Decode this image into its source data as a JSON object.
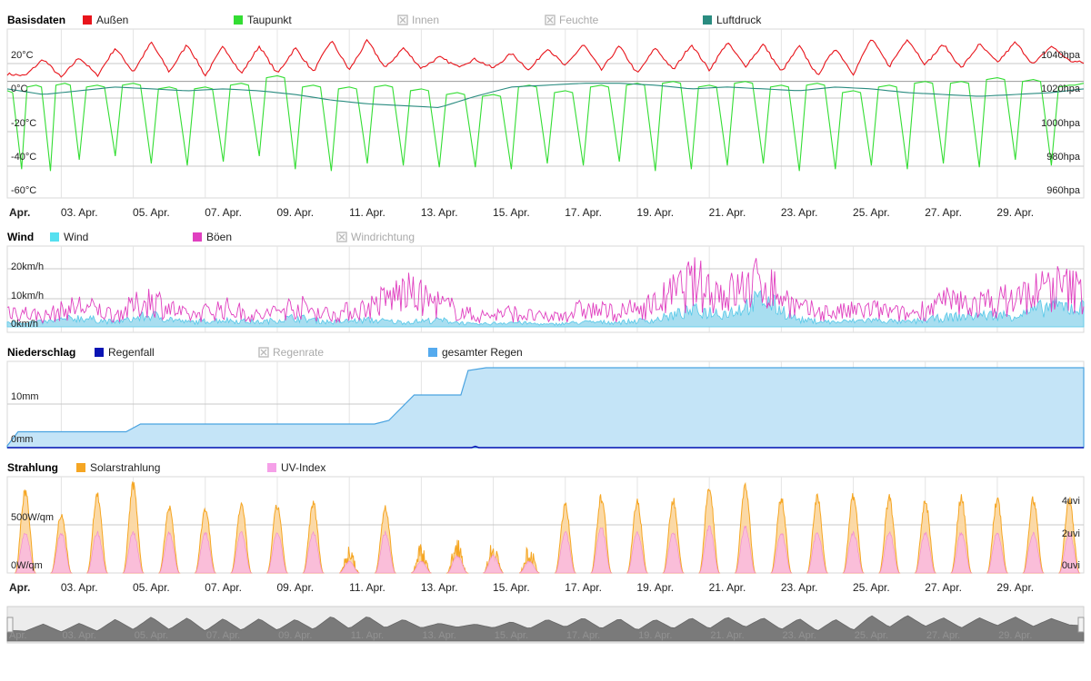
{
  "panels": [
    {
      "title": "Basisdaten",
      "legend": [
        {
          "label": "Außen",
          "color": "#e8141b",
          "enabled": true
        },
        {
          "label": "Taupunkt",
          "color": "#33dd33",
          "enabled": true
        },
        {
          "label": "Innen",
          "color": "#bbbbbb",
          "enabled": false
        },
        {
          "label": "Feuchte",
          "color": "#bbbbbb",
          "enabled": false
        },
        {
          "label": "Luftdruck",
          "color": "#2a8c80",
          "enabled": true
        }
      ],
      "left_axis": {
        "ticks": [
          "20°C",
          "0°C",
          "-20°C",
          "-40°C",
          "-60°C"
        ]
      },
      "right_axis": {
        "ticks": [
          "1040hpa",
          "1020hpa",
          "1000hpa",
          "980hpa",
          "960hpa"
        ]
      }
    },
    {
      "title": "Wind",
      "legend": [
        {
          "label": "Wind",
          "color": "#55e0f0",
          "enabled": true
        },
        {
          "label": "Böen",
          "color": "#e040c0",
          "enabled": true
        },
        {
          "label": "Windrichtung",
          "color": "#bbbbbb",
          "enabled": false
        }
      ],
      "left_axis": {
        "ticks": [
          "20km/h",
          "10km/h",
          "0km/h"
        ]
      }
    },
    {
      "title": "Niederschlag",
      "legend": [
        {
          "label": "Regenfall",
          "color": "#0a14b4",
          "enabled": true
        },
        {
          "label": "Regenrate",
          "color": "#bbbbbb",
          "enabled": false
        },
        {
          "label": "gesamter Regen",
          "color": "#55aaee",
          "enabled": true
        }
      ],
      "left_axis": {
        "ticks": [
          "10mm",
          "0mm"
        ]
      }
    },
    {
      "title": "Strahlung",
      "legend": [
        {
          "label": "Solarstrahlung",
          "color": "#f5a623",
          "enabled": true
        },
        {
          "label": "UV-Index",
          "color": "#f5a0e8",
          "enabled": true
        }
      ],
      "left_axis": {
        "ticks": [
          "500W/qm",
          "0W/qm"
        ]
      },
      "right_axis": {
        "ticks": [
          "4uvi",
          "2uvi",
          "0uvi"
        ]
      }
    }
  ],
  "x_axis_labels": [
    "Apr.",
    "03. Apr.",
    "05. Apr.",
    "07. Apr.",
    "09. Apr.",
    "11. Apr.",
    "13. Apr.",
    "15. Apr.",
    "17. Apr.",
    "19. Apr.",
    "21. Apr.",
    "23. Apr.",
    "25. Apr.",
    "27. Apr.",
    "29. Apr."
  ],
  "chart_data": [
    {
      "type": "line",
      "title": "Basisdaten",
      "x_unit": "day of April",
      "xlim": [
        1,
        30.9
      ],
      "ylim_left": [
        -60,
        30
      ],
      "ylim_right": [
        960,
        1050
      ],
      "grid": true,
      "legend_position": "top",
      "series": [
        {
          "name": "Außen",
          "axis": "left",
          "unit": "°C",
          "color": "#e8141b",
          "x": [
            1.0,
            1.5,
            2.0,
            2.5,
            3.0,
            3.5,
            4.0,
            4.5,
            5.0,
            5.5,
            6.0,
            6.5,
            7.0,
            7.5,
            8.0,
            8.5,
            9.0,
            9.5,
            10.0,
            10.5,
            11.0,
            11.5,
            12.0,
            12.5,
            13.0,
            13.5,
            14.0,
            14.5,
            15.0,
            15.5,
            16.0,
            16.5,
            17.0,
            17.5,
            18.0,
            18.5,
            19.0,
            19.5,
            20.0,
            20.5,
            21.0,
            21.5,
            22.0,
            22.5,
            23.0,
            23.5,
            24.0,
            24.5,
            25.0,
            25.5,
            26.0,
            26.5,
            27.0,
            27.5,
            28.0,
            28.5,
            29.0,
            29.5,
            30.0,
            30.5,
            30.9
          ],
          "values": [
            4,
            3,
            12,
            2,
            13,
            3,
            18,
            5,
            21,
            5,
            20,
            3,
            19,
            4,
            19,
            4,
            18,
            5,
            22,
            6,
            22,
            7,
            18,
            7,
            13,
            8,
            12,
            7,
            15,
            6,
            18,
            8,
            20,
            6,
            19,
            4,
            18,
            6,
            20,
            6,
            21,
            8,
            20,
            5,
            19,
            3,
            18,
            4,
            23,
            8,
            23,
            9,
            20,
            7,
            20,
            10,
            21,
            9,
            19,
            11,
            10
          ]
        },
        {
          "name": "Taupunkt",
          "axis": "left",
          "unit": "°C",
          "color": "#33dd33",
          "x": [
            1.0,
            1.4,
            1.8,
            2.2,
            2.6,
            3.0,
            3.5,
            4.0,
            4.5,
            5.0,
            5.5,
            6.0,
            6.5,
            7.0,
            7.5,
            8.0,
            8.5,
            9.0,
            9.5,
            10.0,
            10.5,
            11.0,
            11.5,
            12.0,
            12.5,
            13.0,
            13.5,
            14.0,
            14.5,
            15.0,
            15.5,
            16.0,
            16.5,
            17.0,
            17.5,
            18.0,
            18.5,
            19.0,
            19.5,
            20.0,
            20.5,
            21.0,
            21.5,
            22.0,
            22.5,
            23.0,
            23.5,
            24.0,
            24.5,
            25.0,
            25.5,
            26.0,
            26.5,
            27.0,
            27.5,
            28.0,
            28.5,
            29.0,
            29.5,
            30.0,
            30.5,
            30.9
          ],
          "values": [
            -5,
            -47,
            -2,
            -48,
            -1,
            -42,
            -2,
            -40,
            -1,
            -44,
            -3,
            -45,
            -3,
            -43,
            -1,
            -40,
            3,
            -47,
            -2,
            -48,
            -3,
            -44,
            -2,
            -45,
            -4,
            -46,
            -6,
            -46,
            -7,
            -47,
            -2,
            -44,
            -5,
            -45,
            -2,
            -43,
            -1,
            -48,
            0,
            -47,
            -2,
            -45,
            0,
            -44,
            -2,
            -48,
            -1,
            -47,
            -5,
            -45,
            -2,
            -47,
            0,
            -44,
            0,
            -46,
            2,
            -42,
            1,
            -45,
            -2,
            -1
          ]
        },
        {
          "name": "Luftdruck",
          "axis": "right",
          "unit": "hpa",
          "color": "#2a8c80",
          "x": [
            1,
            2,
            3,
            4,
            5,
            6,
            7,
            8,
            9,
            10,
            11,
            12,
            13,
            14,
            15,
            16,
            17,
            18,
            19,
            20,
            21,
            22,
            23,
            24,
            25,
            26,
            27,
            28,
            29,
            30,
            30.9
          ],
          "values": [
            1016,
            1013,
            1015,
            1017,
            1016,
            1015,
            1016,
            1015,
            1013,
            1010,
            1008,
            1007,
            1006,
            1012,
            1017,
            1018,
            1019,
            1019,
            1018,
            1016,
            1017,
            1016,
            1015,
            1017,
            1016,
            1014,
            1013,
            1012,
            1013,
            1014,
            1016
          ]
        }
      ]
    },
    {
      "type": "area",
      "title": "Wind",
      "x_unit": "day of April",
      "xlim": [
        1,
        30.9
      ],
      "ylim": [
        0,
        28
      ],
      "grid": true,
      "legend_position": "top",
      "series": [
        {
          "name": "Wind",
          "unit": "km/h",
          "color": "#55e0f0",
          "x": [
            1,
            2,
            3,
            4,
            5,
            6,
            7,
            8,
            9,
            10,
            11,
            12,
            13,
            14,
            15,
            16,
            17,
            18,
            19,
            20,
            21,
            22,
            23,
            24,
            25,
            26,
            27,
            28,
            29,
            30,
            30.9
          ],
          "values": [
            2,
            2,
            4,
            2,
            5,
            2,
            3,
            2,
            4,
            2,
            3,
            2,
            3,
            1,
            2,
            1,
            2,
            2,
            3,
            7,
            6,
            12,
            3,
            2,
            3,
            2,
            4,
            5,
            5,
            9,
            8
          ]
        },
        {
          "name": "Böen",
          "unit": "km/h",
          "color": "#e040c0",
          "x": [
            1,
            2,
            3,
            4,
            5,
            6,
            7,
            8,
            9,
            10,
            11,
            12,
            13,
            14,
            15,
            16,
            17,
            18,
            19,
            20,
            21,
            22,
            23,
            24,
            25,
            26,
            27,
            28,
            29,
            30,
            30.9
          ],
          "values": [
            10,
            6,
            12,
            7,
            16,
            6,
            11,
            6,
            12,
            7,
            11,
            20,
            13,
            6,
            8,
            5,
            10,
            8,
            13,
            25,
            19,
            26,
            10,
            8,
            10,
            7,
            14,
            13,
            16,
            23,
            20
          ]
        }
      ]
    },
    {
      "type": "area",
      "title": "Niederschlag",
      "x_unit": "day of April",
      "xlim": [
        1,
        30.9
      ],
      "ylim": [
        0,
        19
      ],
      "grid": true,
      "legend_position": "top",
      "series": [
        {
          "name": "gesamter Regen",
          "unit": "mm",
          "color": "#55aaee",
          "x": [
            1.0,
            1.3,
            4.3,
            4.7,
            11.2,
            11.6,
            12.3,
            13.6,
            13.8,
            14.3,
            30.9
          ],
          "values": [
            0.4,
            3.5,
            3.5,
            5.2,
            5.2,
            6.0,
            11.6,
            11.6,
            17.0,
            17.6,
            17.6
          ]
        },
        {
          "name": "Regenfall",
          "unit": "mm",
          "color": "#0a14b4",
          "x": [
            1.0,
            13.9,
            14.0,
            14.1,
            30.9
          ],
          "values": [
            0,
            0,
            0.3,
            0,
            0
          ]
        }
      ]
    },
    {
      "type": "area",
      "title": "Strahlung",
      "x_unit": "day of April",
      "xlim": [
        1,
        30.9
      ],
      "ylim_left": [
        0,
        1000
      ],
      "ylim_right": [
        0,
        8
      ],
      "grid": true,
      "legend_position": "top",
      "series": [
        {
          "name": "Solarstrahlung",
          "axis": "left",
          "unit": "W/qm",
          "color": "#f5a623",
          "x": [
            1.5,
            2.5,
            3.5,
            4.5,
            5.5,
            6.5,
            7.5,
            8.5,
            9.5,
            10.5,
            11.5,
            12.5,
            13.5,
            14.5,
            15.5,
            16.5,
            17.5,
            18.5,
            19.5,
            20.5,
            21.5,
            22.5,
            23.5,
            24.5,
            25.5,
            26.5,
            27.5,
            28.5,
            29.5,
            30.5
          ],
          "values": [
            900,
            650,
            860,
            960,
            720,
            710,
            750,
            740,
            760,
            220,
            710,
            250,
            350,
            300,
            240,
            740,
            830,
            780,
            800,
            920,
            960,
            830,
            820,
            850,
            820,
            780,
            820,
            800,
            810,
            800
          ]
        },
        {
          "name": "UV-Index",
          "axis": "right",
          "unit": "uvi",
          "color": "#f5a0e8",
          "x": [
            1.5,
            2.5,
            3.5,
            4.5,
            5.5,
            6.5,
            7.5,
            8.5,
            9.5,
            10.5,
            11.5,
            12.5,
            13.5,
            14.5,
            15.5,
            16.5,
            17.5,
            18.5,
            19.5,
            20.5,
            21.5,
            22.5,
            23.5,
            24.5,
            25.5,
            26.5,
            27.5,
            28.5,
            29.5,
            30.5
          ],
          "values": [
            3.5,
            3.5,
            3.5,
            3.5,
            3.5,
            3.5,
            3.5,
            3.5,
            3.5,
            1,
            3.5,
            1,
            1.5,
            1.5,
            1,
            3.5,
            4,
            3.5,
            3.5,
            4,
            4,
            3.5,
            3.5,
            3.5,
            3.5,
            3.5,
            3.5,
            3.5,
            3.5,
            3.5
          ]
        }
      ]
    }
  ]
}
